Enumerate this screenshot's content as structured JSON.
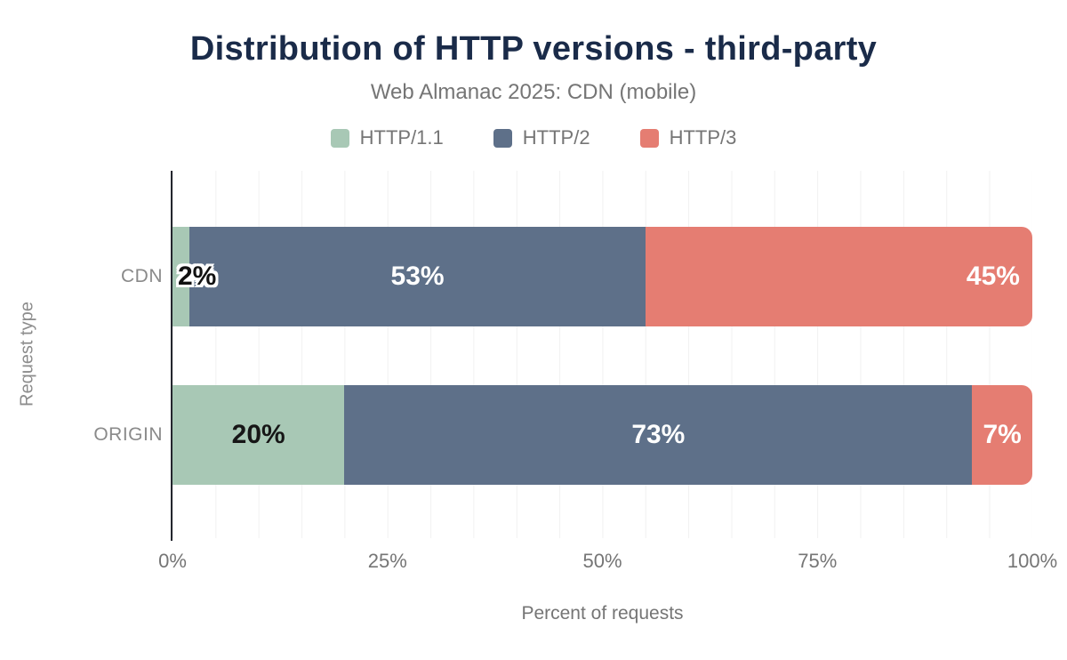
{
  "header": {
    "title": "Distribution of HTTP versions - third-party",
    "subtitle": "Web Almanac 2025: CDN (mobile)"
  },
  "colors": {
    "http1_green": "#a8c8b5",
    "http2_slate": "#5e7089",
    "http3_red": "#e57d72",
    "title_navy": "#1a2b49",
    "muted_gray": "#757575",
    "gridline": "#f1f1f1",
    "axis": "#24262e"
  },
  "legend": [
    {
      "label": "HTTP/1.1",
      "color": "#a8c8b5"
    },
    {
      "label": "HTTP/2",
      "color": "#5e7089"
    },
    {
      "label": "HTTP/3",
      "color": "#e57d72"
    }
  ],
  "chart_data": {
    "type": "bar",
    "orientation": "horizontal",
    "stacked": true,
    "title": "Distribution of HTTP versions - third-party",
    "subtitle": "Web Almanac 2025: CDN (mobile)",
    "categories": [
      "CDN",
      "ORIGIN"
    ],
    "series": [
      {
        "name": "HTTP/1.1",
        "color": "#a8c8b5",
        "values": [
          2,
          20
        ]
      },
      {
        "name": "HTTP/2",
        "color": "#5e7089",
        "values": [
          53,
          73
        ]
      },
      {
        "name": "HTTP/3",
        "color": "#e57d72",
        "values": [
          45,
          7
        ]
      }
    ],
    "xlabel": "Percent of requests",
    "ylabel": "Request type",
    "xlim": [
      0,
      100
    ],
    "x_ticks": [
      "0%",
      "25%",
      "50%",
      "75%",
      "100%"
    ],
    "x_tick_positions": [
      0,
      25,
      50,
      75,
      100
    ],
    "grid": "vertical lines every 5%",
    "legend_position": "top",
    "rows": [
      {
        "category": "CDN",
        "segments": [
          {
            "series": "HTTP/1.1",
            "value": 2,
            "label": "2%",
            "variant": "dark-outlined",
            "align": "start"
          },
          {
            "series": "HTTP/2",
            "value": 53,
            "label": "53%",
            "variant": "light",
            "align": "center"
          },
          {
            "series": "HTTP/3",
            "value": 45,
            "label": "45%",
            "variant": "light",
            "align": "end"
          }
        ]
      },
      {
        "category": "ORIGIN",
        "segments": [
          {
            "series": "HTTP/1.1",
            "value": 20,
            "label": "20%",
            "variant": "dark",
            "align": "center"
          },
          {
            "series": "HTTP/2",
            "value": 73,
            "label": "73%",
            "variant": "light",
            "align": "center"
          },
          {
            "series": "HTTP/3",
            "value": 7,
            "label": "7%",
            "variant": "light",
            "align": "center"
          }
        ]
      }
    ]
  }
}
